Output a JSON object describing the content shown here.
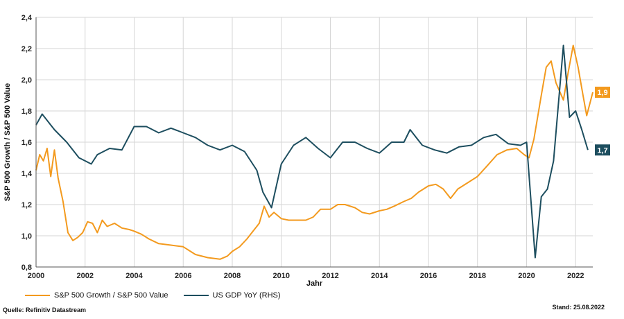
{
  "chart_data": {
    "type": "line",
    "xlabel": "Jahr",
    "ylabel": "S&P 500 Growth / S&P 500 Value",
    "xlim": [
      2000,
      2022.7
    ],
    "ylim": [
      0.8,
      2.4
    ],
    "x_ticks": [
      "2000",
      "2002",
      "2004",
      "2006",
      "2008",
      "2010",
      "2012",
      "2014",
      "2016",
      "2018",
      "2020",
      "2022"
    ],
    "y_ticks": [
      "0,8",
      "1,0",
      "1,2",
      "1,4",
      "1,6",
      "1,8",
      "2,0",
      "2,2",
      "2,4"
    ],
    "grid": true,
    "legend_position": "bottom-left",
    "series": [
      {
        "name": "S&P 500 Growth / S&P 500 Value",
        "color": "#f39a1e",
        "end_label": "1,9",
        "points": [
          [
            2000.0,
            1.42
          ],
          [
            2000.15,
            1.52
          ],
          [
            2000.3,
            1.48
          ],
          [
            2000.45,
            1.56
          ],
          [
            2000.6,
            1.38
          ],
          [
            2000.75,
            1.55
          ],
          [
            2000.9,
            1.37
          ],
          [
            2001.1,
            1.22
          ],
          [
            2001.3,
            1.02
          ],
          [
            2001.5,
            0.97
          ],
          [
            2001.7,
            0.99
          ],
          [
            2001.9,
            1.02
          ],
          [
            2002.1,
            1.09
          ],
          [
            2002.3,
            1.08
          ],
          [
            2002.5,
            1.02
          ],
          [
            2002.7,
            1.1
          ],
          [
            2002.9,
            1.06
          ],
          [
            2003.2,
            1.08
          ],
          [
            2003.5,
            1.05
          ],
          [
            2003.8,
            1.04
          ],
          [
            2004.0,
            1.03
          ],
          [
            2004.3,
            1.01
          ],
          [
            2004.6,
            0.98
          ],
          [
            2005.0,
            0.95
          ],
          [
            2005.5,
            0.94
          ],
          [
            2006.0,
            0.93
          ],
          [
            2006.5,
            0.88
          ],
          [
            2007.0,
            0.86
          ],
          [
            2007.5,
            0.85
          ],
          [
            2007.8,
            0.87
          ],
          [
            2008.0,
            0.9
          ],
          [
            2008.3,
            0.93
          ],
          [
            2008.6,
            0.98
          ],
          [
            2008.9,
            1.04
          ],
          [
            2009.1,
            1.08
          ],
          [
            2009.3,
            1.19
          ],
          [
            2009.5,
            1.12
          ],
          [
            2009.7,
            1.15
          ],
          [
            2010.0,
            1.11
          ],
          [
            2010.3,
            1.1
          ],
          [
            2010.6,
            1.1
          ],
          [
            2011.0,
            1.1
          ],
          [
            2011.3,
            1.12
          ],
          [
            2011.6,
            1.17
          ],
          [
            2012.0,
            1.17
          ],
          [
            2012.3,
            1.2
          ],
          [
            2012.6,
            1.2
          ],
          [
            2013.0,
            1.18
          ],
          [
            2013.3,
            1.15
          ],
          [
            2013.6,
            1.14
          ],
          [
            2014.0,
            1.16
          ],
          [
            2014.3,
            1.17
          ],
          [
            2014.6,
            1.19
          ],
          [
            2015.0,
            1.22
          ],
          [
            2015.3,
            1.24
          ],
          [
            2015.6,
            1.28
          ],
          [
            2016.0,
            1.32
          ],
          [
            2016.3,
            1.33
          ],
          [
            2016.6,
            1.3
          ],
          [
            2016.9,
            1.24
          ],
          [
            2017.2,
            1.3
          ],
          [
            2017.6,
            1.34
          ],
          [
            2018.0,
            1.38
          ],
          [
            2018.4,
            1.45
          ],
          [
            2018.8,
            1.52
          ],
          [
            2019.2,
            1.55
          ],
          [
            2019.6,
            1.56
          ],
          [
            2019.9,
            1.52
          ],
          [
            2020.1,
            1.5
          ],
          [
            2020.3,
            1.62
          ],
          [
            2020.6,
            1.9
          ],
          [
            2020.8,
            2.08
          ],
          [
            2021.0,
            2.12
          ],
          [
            2021.2,
            1.98
          ],
          [
            2021.5,
            1.87
          ],
          [
            2021.7,
            2.05
          ],
          [
            2021.9,
            2.22
          ],
          [
            2022.1,
            2.08
          ],
          [
            2022.3,
            1.9
          ],
          [
            2022.45,
            1.77
          ],
          [
            2022.6,
            1.86
          ],
          [
            2022.7,
            1.92
          ]
        ]
      },
      {
        "name": "US GDP YoY (RHS)",
        "color": "#1d4e5f",
        "end_label": "1,7",
        "points": [
          [
            2000.0,
            1.71
          ],
          [
            2000.25,
            1.78
          ],
          [
            2000.75,
            1.68
          ],
          [
            2001.25,
            1.6
          ],
          [
            2001.75,
            1.5
          ],
          [
            2002.25,
            1.46
          ],
          [
            2002.5,
            1.52
          ],
          [
            2003.0,
            1.56
          ],
          [
            2003.5,
            1.55
          ],
          [
            2004.0,
            1.7
          ],
          [
            2004.5,
            1.7
          ],
          [
            2005.0,
            1.66
          ],
          [
            2005.5,
            1.69
          ],
          [
            2006.0,
            1.66
          ],
          [
            2006.5,
            1.63
          ],
          [
            2007.0,
            1.58
          ],
          [
            2007.5,
            1.55
          ],
          [
            2008.0,
            1.58
          ],
          [
            2008.5,
            1.54
          ],
          [
            2009.0,
            1.42
          ],
          [
            2009.25,
            1.28
          ],
          [
            2009.6,
            1.18
          ],
          [
            2010.0,
            1.46
          ],
          [
            2010.5,
            1.58
          ],
          [
            2011.0,
            1.63
          ],
          [
            2011.5,
            1.56
          ],
          [
            2012.0,
            1.5
          ],
          [
            2012.5,
            1.6
          ],
          [
            2013.0,
            1.6
          ],
          [
            2013.5,
            1.56
          ],
          [
            2014.0,
            1.53
          ],
          [
            2014.5,
            1.6
          ],
          [
            2015.0,
            1.6
          ],
          [
            2015.25,
            1.68
          ],
          [
            2015.75,
            1.58
          ],
          [
            2016.25,
            1.55
          ],
          [
            2016.75,
            1.53
          ],
          [
            2017.25,
            1.57
          ],
          [
            2017.75,
            1.58
          ],
          [
            2018.25,
            1.63
          ],
          [
            2018.75,
            1.65
          ],
          [
            2019.25,
            1.59
          ],
          [
            2019.75,
            1.58
          ],
          [
            2020.0,
            1.6
          ],
          [
            2020.35,
            0.86
          ],
          [
            2020.6,
            1.25
          ],
          [
            2020.85,
            1.3
          ],
          [
            2021.1,
            1.48
          ],
          [
            2021.5,
            2.22
          ],
          [
            2021.75,
            1.76
          ],
          [
            2022.0,
            1.8
          ],
          [
            2022.25,
            1.68
          ],
          [
            2022.5,
            1.55
          ]
        ]
      }
    ]
  },
  "footer": {
    "source": "Quelle: Refinitiv Datastream",
    "date": "Stand: 25.08.2022"
  }
}
